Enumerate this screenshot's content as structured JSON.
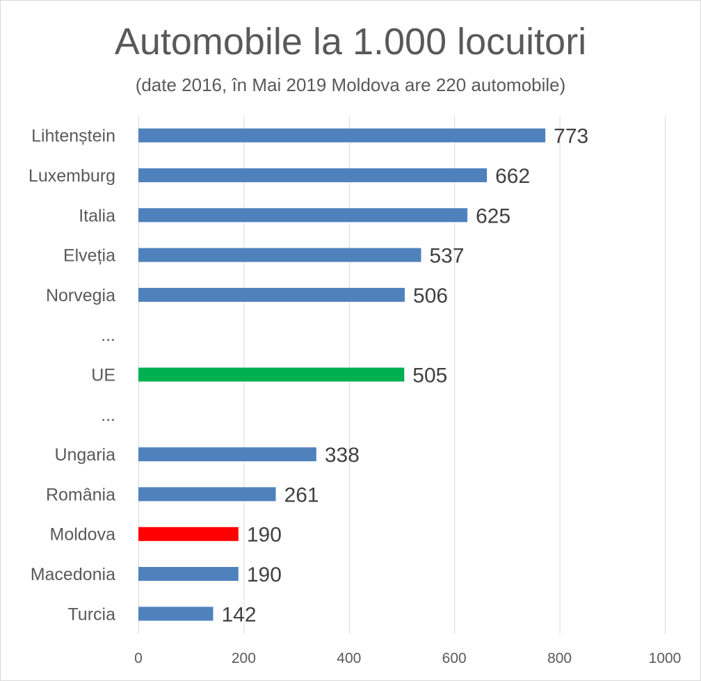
{
  "chart_data": {
    "type": "bar",
    "orientation": "horizontal",
    "title": "Automobile la 1.000 locuitori",
    "subtitle": "(date 2016, în Mai 2019 Moldova are 220 automobile)",
    "categories": [
      "Lihtenștein",
      "Luxemburg",
      "Italia",
      "Elveția",
      "Norvegia",
      "...",
      "UE",
      "...",
      "Ungaria",
      "România",
      "Moldova",
      "Macedonia",
      "Turcia"
    ],
    "values": [
      773,
      662,
      625,
      537,
      506,
      null,
      505,
      null,
      338,
      261,
      190,
      190,
      142
    ],
    "bar_colors": [
      "#4f81bd",
      "#4f81bd",
      "#4f81bd",
      "#4f81bd",
      "#4f81bd",
      null,
      "#00b050",
      null,
      "#4f81bd",
      "#4f81bd",
      "#ff0000",
      "#4f81bd",
      "#4f81bd"
    ],
    "xlim": [
      0,
      1000
    ],
    "xticks": [
      0,
      200,
      400,
      600,
      800,
      1000
    ],
    "grid": "vertical",
    "legend": "none",
    "xlabel": "",
    "ylabel": ""
  },
  "colors": {
    "default_bar": "#4f81bd",
    "highlight_eu": "#00b050",
    "highlight_moldova": "#ff0000",
    "gridline": "#d9d9d9",
    "text": "#595959"
  }
}
